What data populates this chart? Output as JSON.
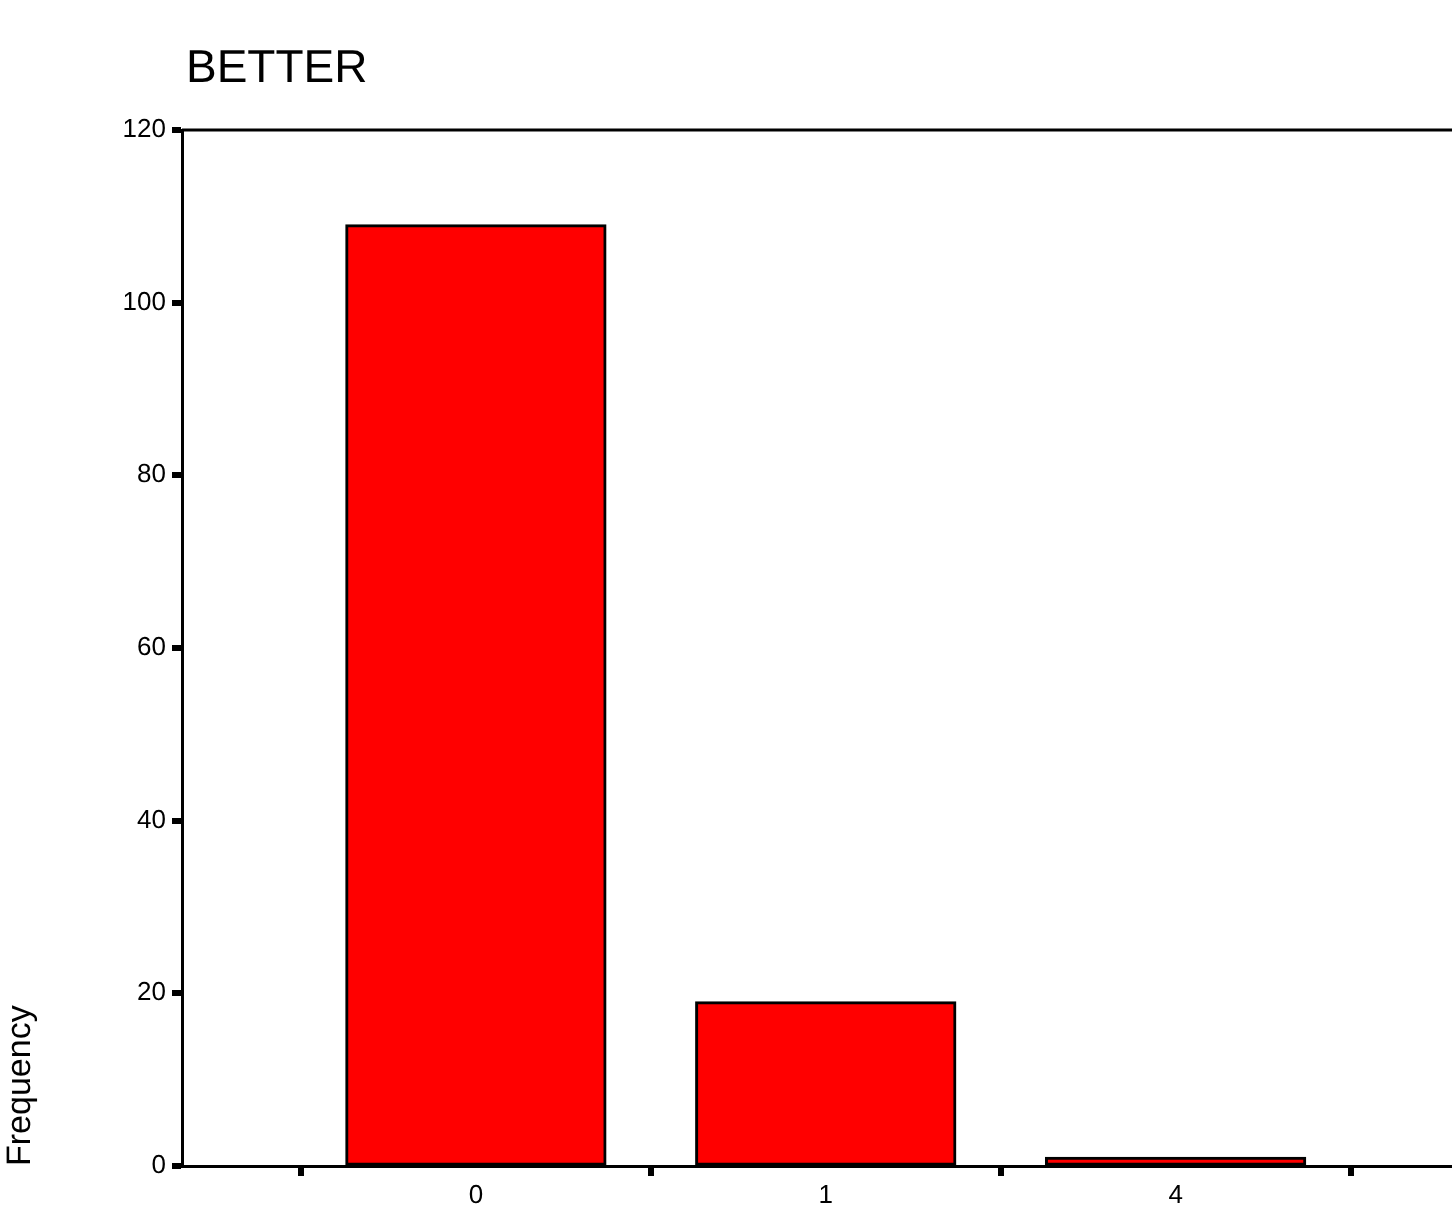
{
  "chart_data": {
    "type": "bar",
    "title": "BETTER",
    "ylabel": "Frequency",
    "categories": [
      "0",
      "1",
      "4"
    ],
    "values": [
      109,
      19,
      1
    ],
    "color": "#ff0000",
    "ylim": [
      0,
      120
    ],
    "yticks": [
      0,
      20,
      40,
      60,
      80,
      100,
      120
    ],
    "grid": false
  }
}
